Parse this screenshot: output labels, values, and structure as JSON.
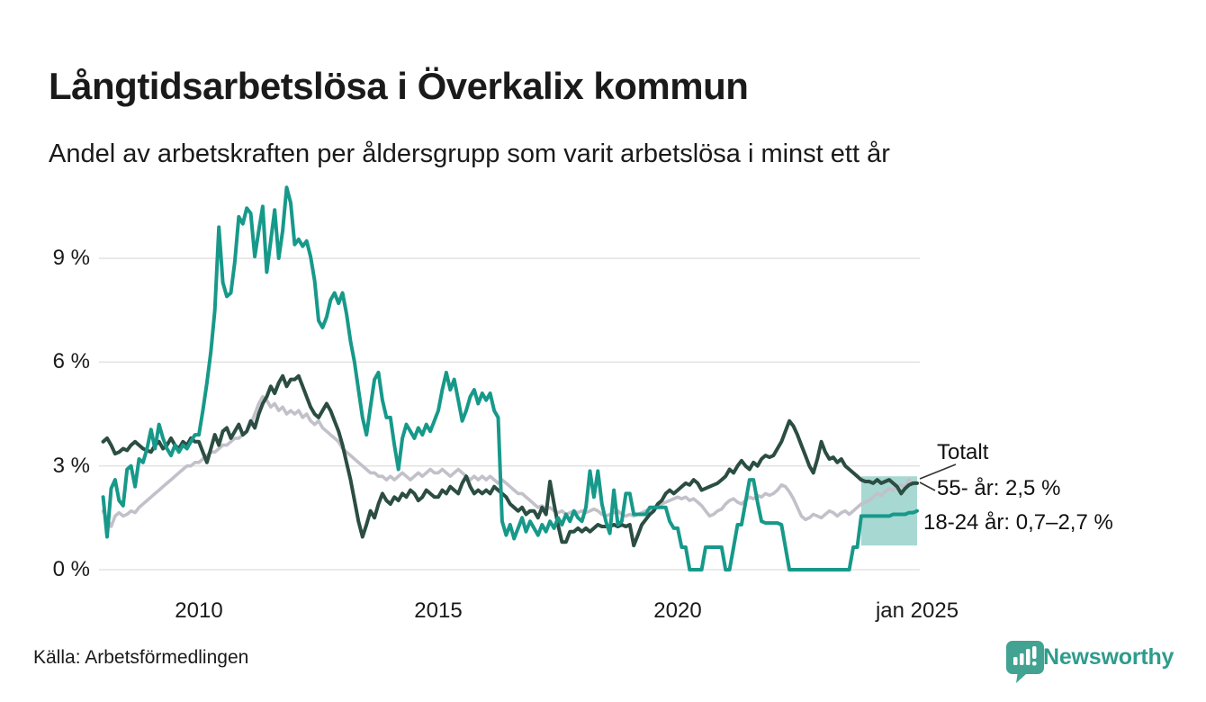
{
  "title": "Långtidsarbetslösa i Överkalix kommun",
  "subtitle": "Andel av arbetskraften per åldersgrupp som varit arbetslösa i minst ett år",
  "source": "Källa: Arbetsförmedlingen",
  "branding": {
    "name": "Newsworthy",
    "icon": "speech-bubble-bar-chart-icon",
    "icon_color": "#43a392",
    "text_color": "#2e9c8c"
  },
  "annotations": {
    "totalt": "Totalt",
    "age_55": "55- år: 2,5 %",
    "age_18_24": "18-24 år: 0,7–2,7 %"
  },
  "colors": {
    "teal_line": "#17998a",
    "dark_green_line": "#2b4d42",
    "gray_line": "#c2c0c9",
    "band_fill": "rgba(23,153,138,0.38)",
    "gridline": "#e4e4e4",
    "text": "#1a1a1a"
  },
  "chart_data": {
    "type": "line",
    "title": "Långtidsarbetslösa i Överkalix kommun",
    "subtitle": "Andel av arbetskraften per åldersgrupp som varit arbetslösa i minst ett år",
    "x_unit": "monthly",
    "x_start_year": 2008,
    "x_end_label": "jan 2025",
    "xlim": [
      2008.0,
      2025.25
    ],
    "ylim": [
      0,
      11.5
    ],
    "grid": true,
    "y_ticks": [
      {
        "label": "0 %",
        "value": 0
      },
      {
        "label": "3 %",
        "value": 3
      },
      {
        "label": "6 %",
        "value": 6
      },
      {
        "label": "9 %",
        "value": 9
      }
    ],
    "x_ticks": [
      {
        "label": "2010",
        "year": 2010
      },
      {
        "label": "2015",
        "year": 2015
      },
      {
        "label": "2020",
        "year": 2020
      },
      {
        "label": "jan 2025",
        "year": 2025
      }
    ],
    "uncertainty_band": {
      "series": "18-24 år",
      "from_year": 2023.833,
      "to_year": 2025.0,
      "low": 0.7,
      "high": 2.7,
      "label": "0,7–2,7 %"
    },
    "latest_values": {
      "totalt": "2,5 %",
      "55- år": "2,5 %",
      "18-24 år": "0,7–2,7 %"
    },
    "series": [
      {
        "id": "totalt",
        "name": "Totalt",
        "color": "#c2c0c9",
        "width": 3.6,
        "values": [
          1.7,
          1.45,
          1.25,
          1.55,
          1.65,
          1.55,
          1.6,
          1.7,
          1.65,
          1.8,
          1.9,
          2.0,
          2.1,
          2.2,
          2.3,
          2.4,
          2.5,
          2.6,
          2.7,
          2.8,
          2.9,
          3.0,
          3.0,
          3.1,
          3.1,
          3.2,
          3.3,
          3.4,
          3.4,
          3.5,
          3.6,
          3.6,
          3.7,
          3.8,
          3.8,
          3.9,
          4.0,
          4.2,
          4.5,
          4.8,
          5.0,
          4.9,
          4.7,
          4.8,
          4.6,
          4.7,
          4.5,
          4.6,
          4.5,
          4.6,
          4.4,
          4.5,
          4.3,
          4.2,
          4.3,
          4.1,
          4.0,
          3.9,
          3.8,
          3.7,
          3.5,
          3.4,
          3.3,
          3.2,
          3.1,
          3.0,
          2.9,
          2.8,
          2.8,
          2.7,
          2.7,
          2.6,
          2.7,
          2.6,
          2.7,
          2.8,
          2.7,
          2.6,
          2.7,
          2.8,
          2.7,
          2.8,
          2.9,
          2.8,
          2.8,
          2.9,
          2.8,
          2.7,
          2.8,
          2.9,
          2.8,
          2.7,
          2.6,
          2.7,
          2.6,
          2.7,
          2.6,
          2.7,
          2.6,
          2.5,
          2.6,
          2.5,
          2.4,
          2.3,
          2.2,
          2.2,
          2.1,
          2.0,
          1.9,
          1.8,
          1.85,
          1.75,
          1.8,
          1.7,
          1.65,
          1.7,
          1.6,
          1.65,
          1.7,
          1.65,
          1.7,
          1.65,
          1.7,
          1.75,
          1.7,
          1.6,
          1.55,
          1.6,
          1.65,
          1.7,
          1.6,
          1.55,
          1.6,
          1.55,
          1.6,
          1.65,
          1.7,
          1.75,
          1.8,
          1.85,
          1.9,
          1.95,
          2.0,
          2.05,
          2.1,
          2.05,
          2.1,
          2.0,
          2.05,
          1.95,
          1.85,
          1.7,
          1.55,
          1.6,
          1.7,
          1.75,
          1.9,
          2.0,
          2.05,
          1.95,
          1.9,
          2.0,
          2.1,
          2.05,
          2.15,
          2.1,
          2.2,
          2.15,
          2.2,
          2.3,
          2.45,
          2.4,
          2.25,
          2.05,
          1.8,
          1.55,
          1.45,
          1.5,
          1.6,
          1.55,
          1.5,
          1.6,
          1.7,
          1.65,
          1.55,
          1.65,
          1.7,
          1.6,
          1.7,
          1.8,
          1.9,
          1.95,
          2.0,
          2.1,
          2.2,
          2.15,
          2.25,
          2.35,
          2.3,
          2.4,
          2.45,
          2.4,
          2.6,
          2.45,
          2.5
        ]
      },
      {
        "id": "55-ar",
        "name": "55- år",
        "color": "#2b4d42",
        "width": 4,
        "values": [
          3.7,
          3.8,
          3.6,
          3.35,
          3.4,
          3.5,
          3.45,
          3.6,
          3.7,
          3.6,
          3.5,
          3.45,
          3.4,
          3.6,
          3.7,
          3.5,
          3.6,
          3.8,
          3.6,
          3.5,
          3.7,
          3.6,
          3.8,
          3.7,
          3.7,
          3.4,
          3.1,
          3.5,
          3.9,
          3.6,
          4.0,
          4.1,
          3.8,
          4.0,
          4.2,
          3.9,
          4.0,
          4.3,
          4.1,
          4.5,
          4.8,
          5.0,
          5.3,
          5.1,
          5.4,
          5.6,
          5.3,
          5.5,
          5.5,
          5.6,
          5.3,
          5.0,
          4.7,
          4.5,
          4.4,
          4.6,
          4.8,
          4.6,
          4.3,
          4.0,
          3.6,
          3.1,
          2.6,
          2.0,
          1.4,
          0.95,
          1.3,
          1.7,
          1.5,
          1.9,
          2.2,
          2.0,
          1.9,
          2.1,
          2.0,
          2.2,
          2.1,
          2.3,
          2.2,
          2.0,
          2.1,
          2.3,
          2.2,
          2.1,
          2.1,
          2.3,
          2.2,
          2.4,
          2.3,
          2.2,
          2.5,
          2.7,
          2.4,
          2.2,
          2.3,
          2.2,
          2.3,
          2.2,
          2.4,
          2.3,
          2.2,
          2.1,
          1.9,
          1.8,
          1.7,
          1.8,
          1.6,
          1.7,
          1.7,
          1.5,
          1.8,
          1.6,
          2.55,
          1.9,
          1.3,
          0.8,
          0.8,
          1.1,
          1.1,
          1.2,
          1.1,
          1.2,
          1.1,
          1.2,
          1.3,
          1.25,
          1.25,
          1.25,
          1.3,
          1.25,
          1.3,
          1.25,
          1.3,
          0.7,
          1.0,
          1.3,
          1.45,
          1.6,
          1.7,
          1.9,
          2.0,
          2.2,
          2.3,
          2.2,
          2.3,
          2.4,
          2.5,
          2.45,
          2.6,
          2.5,
          2.3,
          2.35,
          2.4,
          2.45,
          2.5,
          2.6,
          2.7,
          2.9,
          2.8,
          3.0,
          3.15,
          3.0,
          2.9,
          3.1,
          3.0,
          3.2,
          3.3,
          3.25,
          3.3,
          3.5,
          3.7,
          4.0,
          4.3,
          4.15,
          3.9,
          3.6,
          3.3,
          3.0,
          2.8,
          3.2,
          3.7,
          3.4,
          3.2,
          3.25,
          3.1,
          3.2,
          3.0,
          2.9,
          2.8,
          2.7,
          2.6,
          2.55,
          2.55,
          2.5,
          2.6,
          2.5,
          2.55,
          2.6,
          2.5,
          2.4,
          2.2,
          2.35,
          2.45,
          2.5,
          2.5
        ]
      },
      {
        "id": "18-24-ar",
        "name": "18-24 år",
        "color": "#17998a",
        "width": 4,
        "values": [
          2.1,
          0.95,
          2.35,
          2.6,
          2.0,
          1.85,
          2.9,
          3.0,
          2.4,
          3.2,
          3.1,
          3.5,
          4.05,
          3.5,
          4.2,
          3.8,
          3.5,
          3.3,
          3.6,
          3.4,
          3.6,
          3.5,
          3.7,
          3.9,
          3.9,
          4.6,
          5.4,
          6.3,
          7.5,
          9.9,
          8.3,
          7.9,
          8.0,
          8.9,
          10.2,
          10.0,
          10.45,
          10.3,
          9.05,
          9.8,
          10.5,
          8.6,
          9.5,
          10.4,
          9.0,
          9.8,
          11.05,
          10.6,
          9.4,
          9.55,
          9.35,
          9.5,
          9.05,
          8.35,
          7.2,
          7.0,
          7.3,
          7.8,
          8.0,
          7.7,
          8.0,
          7.4,
          6.6,
          6.0,
          5.2,
          4.4,
          3.9,
          4.7,
          5.5,
          5.7,
          4.9,
          4.4,
          4.4,
          3.6,
          2.9,
          3.8,
          4.2,
          4.0,
          3.8,
          4.1,
          3.9,
          4.2,
          4.0,
          4.3,
          4.6,
          5.2,
          5.7,
          5.2,
          5.5,
          4.9,
          4.3,
          4.6,
          5.0,
          5.2,
          4.8,
          5.1,
          4.9,
          5.1,
          4.6,
          4.4,
          1.4,
          1.0,
          1.3,
          0.9,
          1.2,
          1.5,
          1.1,
          1.4,
          1.2,
          1.0,
          1.3,
          1.1,
          1.4,
          1.2,
          1.5,
          1.3,
          1.6,
          1.4,
          1.7,
          1.5,
          1.4,
          1.8,
          2.85,
          2.1,
          2.85,
          1.9,
          1.4,
          1.05,
          2.3,
          1.3,
          1.4,
          2.2,
          2.2,
          1.6,
          1.6,
          1.6,
          1.6,
          1.8,
          1.8,
          1.8,
          1.8,
          1.8,
          1.4,
          1.2,
          1.2,
          0.65,
          0.65,
          0.0,
          0.0,
          0.0,
          0.0,
          0.65,
          0.65,
          0.65,
          0.65,
          0.65,
          0.0,
          0.0,
          0.65,
          1.3,
          1.3,
          1.95,
          2.6,
          2.6,
          1.95,
          1.4,
          1.35,
          1.35,
          1.35,
          1.35,
          1.3,
          0.65,
          0.0,
          0.0,
          0.0,
          0.0,
          0.0,
          0.0,
          0.0,
          0.0,
          0.0,
          0.0,
          0.0,
          0.0,
          0.0,
          0.0,
          0.0,
          0.0,
          0.65,
          0.65,
          1.55,
          1.55,
          1.55,
          1.55,
          1.55,
          1.55,
          1.55,
          1.55,
          1.6,
          1.6,
          1.6,
          1.6,
          1.65,
          1.65,
          1.7
        ]
      }
    ]
  }
}
